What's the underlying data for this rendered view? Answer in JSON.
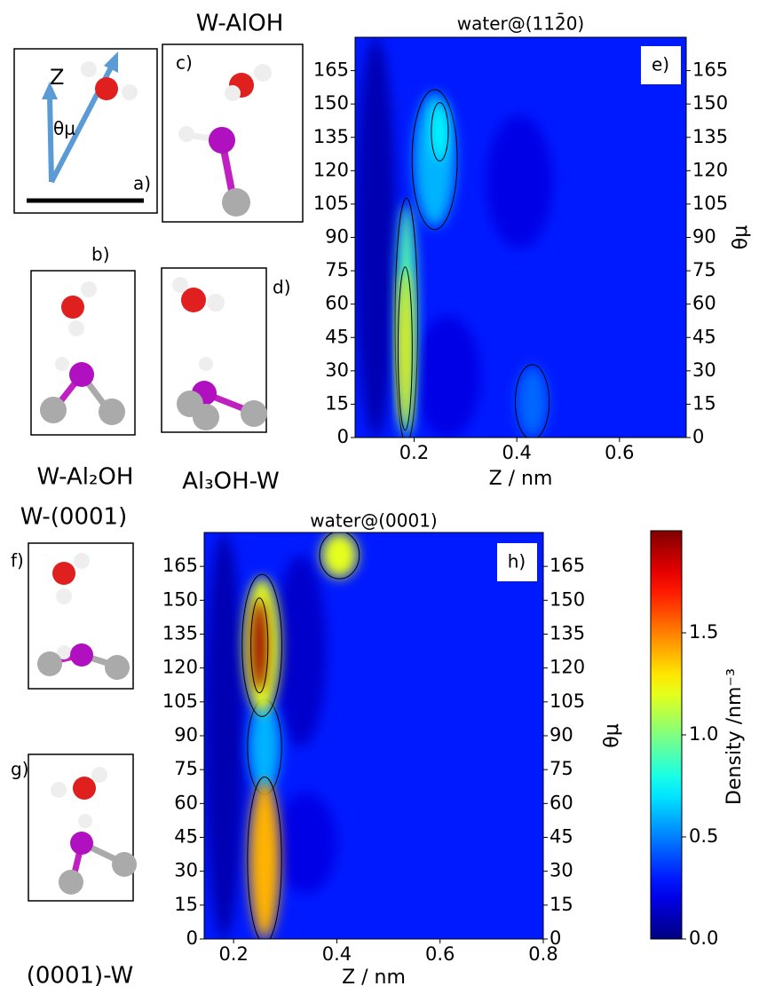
{
  "chart_data": [
    {
      "type": "heatmap",
      "title": "water@(112̄0)",
      "panel": "e)",
      "xlabel": "Z / nm",
      "ylabel": "θμ",
      "xlim": [
        0.085,
        0.73
      ],
      "ylim": [
        0,
        180
      ],
      "xticks": [
        0.2,
        0.4,
        0.6
      ],
      "yticks": [
        0,
        15,
        30,
        45,
        60,
        75,
        90,
        105,
        120,
        135,
        150,
        165
      ],
      "background": 0.3,
      "regions": [
        {
          "x": [
            0.085,
            0.165
          ],
          "y": [
            0,
            180
          ],
          "value": 0.1
        },
        {
          "x": [
            0.2,
            0.33
          ],
          "y": [
            0,
            55
          ],
          "value": 0.2
        },
        {
          "x": [
            0.34,
            0.47
          ],
          "y": [
            85,
            145
          ],
          "value": 0.2
        },
        {
          "x": [
            0.2,
            0.28
          ],
          "y": [
            95,
            155
          ],
          "value": 0.6
        },
        {
          "x": [
            0.4,
            0.46
          ],
          "y": [
            0,
            32
          ],
          "value": 0.45
        },
        {
          "x": [
            0.165,
            0.205
          ],
          "y": [
            0,
            105
          ],
          "value": 0.9
        },
        {
          "x": [
            0.235,
            0.265
          ],
          "y": [
            125,
            150
          ],
          "value": 0.75
        },
        {
          "x": [
            0.17,
            0.195
          ],
          "y": [
            5,
            75
          ],
          "value": 1.3
        }
      ]
    },
    {
      "type": "heatmap",
      "title": "water@(0001)",
      "panel": "h)",
      "xlabel": "Z / nm",
      "ylabel": "θμ",
      "xlim": [
        0.143,
        0.8
      ],
      "ylim": [
        0,
        180
      ],
      "xticks": [
        0.2,
        0.4,
        0.6,
        0.8
      ],
      "yticks": [
        0,
        15,
        30,
        45,
        60,
        75,
        90,
        105,
        120,
        135,
        150,
        165
      ],
      "background": 0.3,
      "regions": [
        {
          "x": [
            0.143,
            0.22
          ],
          "y": [
            0,
            180
          ],
          "value": 0.1
        },
        {
          "x": [
            0.28,
            0.38
          ],
          "y": [
            85,
            170
          ],
          "value": 0.15
        },
        {
          "x": [
            0.28,
            0.4
          ],
          "y": [
            20,
            65
          ],
          "value": 0.2
        },
        {
          "x": [
            0.23,
            0.29
          ],
          "y": [
            65,
            105
          ],
          "value": 0.6
        },
        {
          "x": [
            0.23,
            0.29
          ],
          "y": [
            0,
            70
          ],
          "value": 1.4
        },
        {
          "x": [
            0.22,
            0.29
          ],
          "y": [
            100,
            160
          ],
          "value": 1.2
        },
        {
          "x": [
            0.235,
            0.265
          ],
          "y": [
            110,
            150
          ],
          "value": 1.95
        },
        {
          "x": [
            0.37,
            0.44
          ],
          "y": [
            160,
            180
          ],
          "value": 1.2
        }
      ]
    },
    {
      "type": "colorbar",
      "label": "Density /nm⁻³",
      "colormap": "jet",
      "clim": [
        0,
        2.0
      ],
      "ticks": [
        {
          "value": 0,
          "label": "0.0"
        },
        {
          "value": 0.5,
          "label": "0.5"
        },
        {
          "value": 1,
          "label": "1.0"
        },
        {
          "value": 1.5,
          "label": "1.5"
        }
      ]
    }
  ],
  "panels": {
    "top_title": "W-AlOH",
    "a": "a)",
    "z": "Z",
    "theta": "θμ",
    "b": "b)",
    "c": "c)",
    "d": "d)",
    "b_name": "W-Al₂OH",
    "d_name": "Al₃OH-W",
    "bottom_title": "W-(0001)",
    "f": "f)",
    "g": "g)",
    "g_name": "(0001)-W"
  }
}
